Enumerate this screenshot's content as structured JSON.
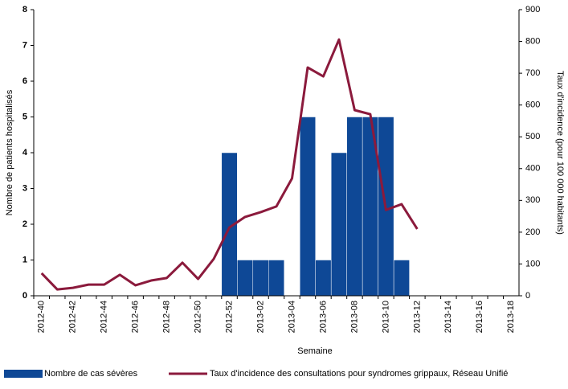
{
  "chart_data": {
    "type": "bar-line",
    "categories": [
      "2012-40",
      null,
      "2012-42",
      null,
      "2012-44",
      null,
      "2012-46",
      null,
      "2012-48",
      null,
      "2012-50",
      null,
      "2012-52",
      null,
      "2013-02",
      null,
      "2013-04",
      null,
      "2013-06",
      null,
      "2013-08",
      null,
      "2013-10",
      null,
      "2013-12",
      null,
      "2013-14",
      null,
      "2013-16",
      null,
      "2013-18"
    ],
    "series": [
      {
        "name": "Nombre de cas sévères",
        "type": "bar",
        "color": "#0e4896",
        "values": [
          0,
          0,
          0,
          0,
          0,
          0,
          0,
          0,
          0,
          0,
          0,
          0,
          4,
          1,
          1,
          1,
          0,
          5,
          1,
          4,
          5,
          5,
          5,
          1,
          0,
          0,
          0,
          0,
          0,
          0,
          0
        ]
      },
      {
        "name": "Taux d'incidence des consultations pour syndromes grippaux, Réseau Unifié",
        "type": "line",
        "axis": "y2",
        "color": "#8b1a3c",
        "values": [
          71,
          20,
          25,
          35,
          35,
          66,
          33,
          48,
          56,
          104,
          53,
          116,
          215,
          248,
          263,
          281,
          369,
          718,
          690,
          806,
          584,
          571,
          270,
          288,
          210,
          null,
          null,
          null,
          null,
          null,
          null
        ]
      }
    ],
    "x_label": "Semaine",
    "y_label": "Nombre de patients hospitalisés",
    "y2_label": "Taux d'incidence (pour 100 000 habitants)",
    "ylim": [
      0,
      8
    ],
    "yticks": [
      0,
      1,
      2,
      3,
      4,
      5,
      6,
      7,
      8
    ],
    "y2lim": [
      0,
      900
    ],
    "y2ticks": [
      0,
      100,
      200,
      300,
      400,
      500,
      600,
      700,
      800,
      900
    ],
    "legend": "bottom"
  }
}
